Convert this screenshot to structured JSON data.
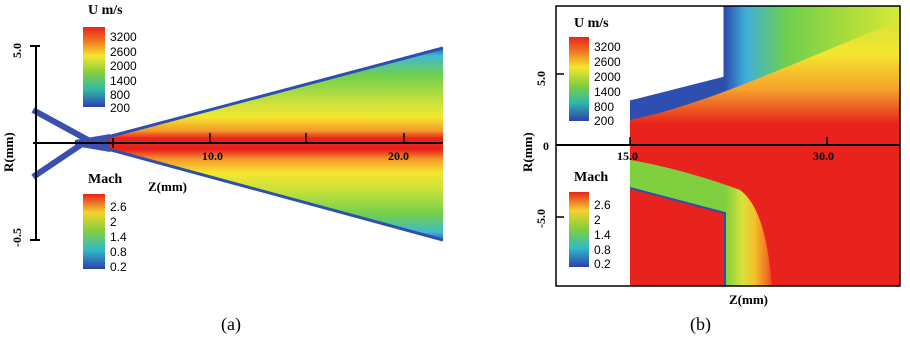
{
  "chart_data": [
    {
      "type": "heatmap",
      "panel_label": "(a)",
      "xlabel": "Z(mm)",
      "ylabel": "R(mm)",
      "x_ticks": [
        "10.0",
        "20.0"
      ],
      "y_ticks": [
        "5.0",
        "-0.5"
      ],
      "velocity_legend": {
        "title": "U m/s",
        "levels": [
          "3200",
          "2600",
          "2000",
          "1400",
          "800",
          "200"
        ],
        "colors": [
          "#e8231e",
          "#f5892a",
          "#f5e62f",
          "#7fcf3f",
          "#30b9a8",
          "#2f5fb8"
        ]
      },
      "mach_legend": {
        "title": "Mach",
        "levels": [
          "2.6",
          "2",
          "1.4",
          "0.8",
          "0.2"
        ],
        "colors": [
          "#e8231e",
          "#f5d22f",
          "#7fcf3f",
          "#30b9c8",
          "#2f5fb8"
        ]
      }
    },
    {
      "type": "heatmap",
      "panel_label": "(b)",
      "xlabel": "Z(mm)",
      "ylabel": "R(mm)",
      "x_ticks": [
        "15.0",
        "30.0"
      ],
      "y_ticks": [
        "5.0",
        "0",
        "-5.0"
      ],
      "velocity_legend": {
        "title": "U m/s",
        "levels": [
          "3200",
          "2600",
          "2000",
          "1400",
          "800",
          "200"
        ],
        "colors": [
          "#e8231e",
          "#f5892a",
          "#f5e62f",
          "#7fcf3f",
          "#30b9a8",
          "#2f5fb8"
        ]
      },
      "mach_legend": {
        "title": "Mach",
        "levels": [
          "2.6",
          "2",
          "1.4",
          "0.8",
          "0.2"
        ],
        "colors": [
          "#e8231e",
          "#f5d22f",
          "#7fcf3f",
          "#30b9c8",
          "#2f5fb8"
        ]
      }
    }
  ]
}
